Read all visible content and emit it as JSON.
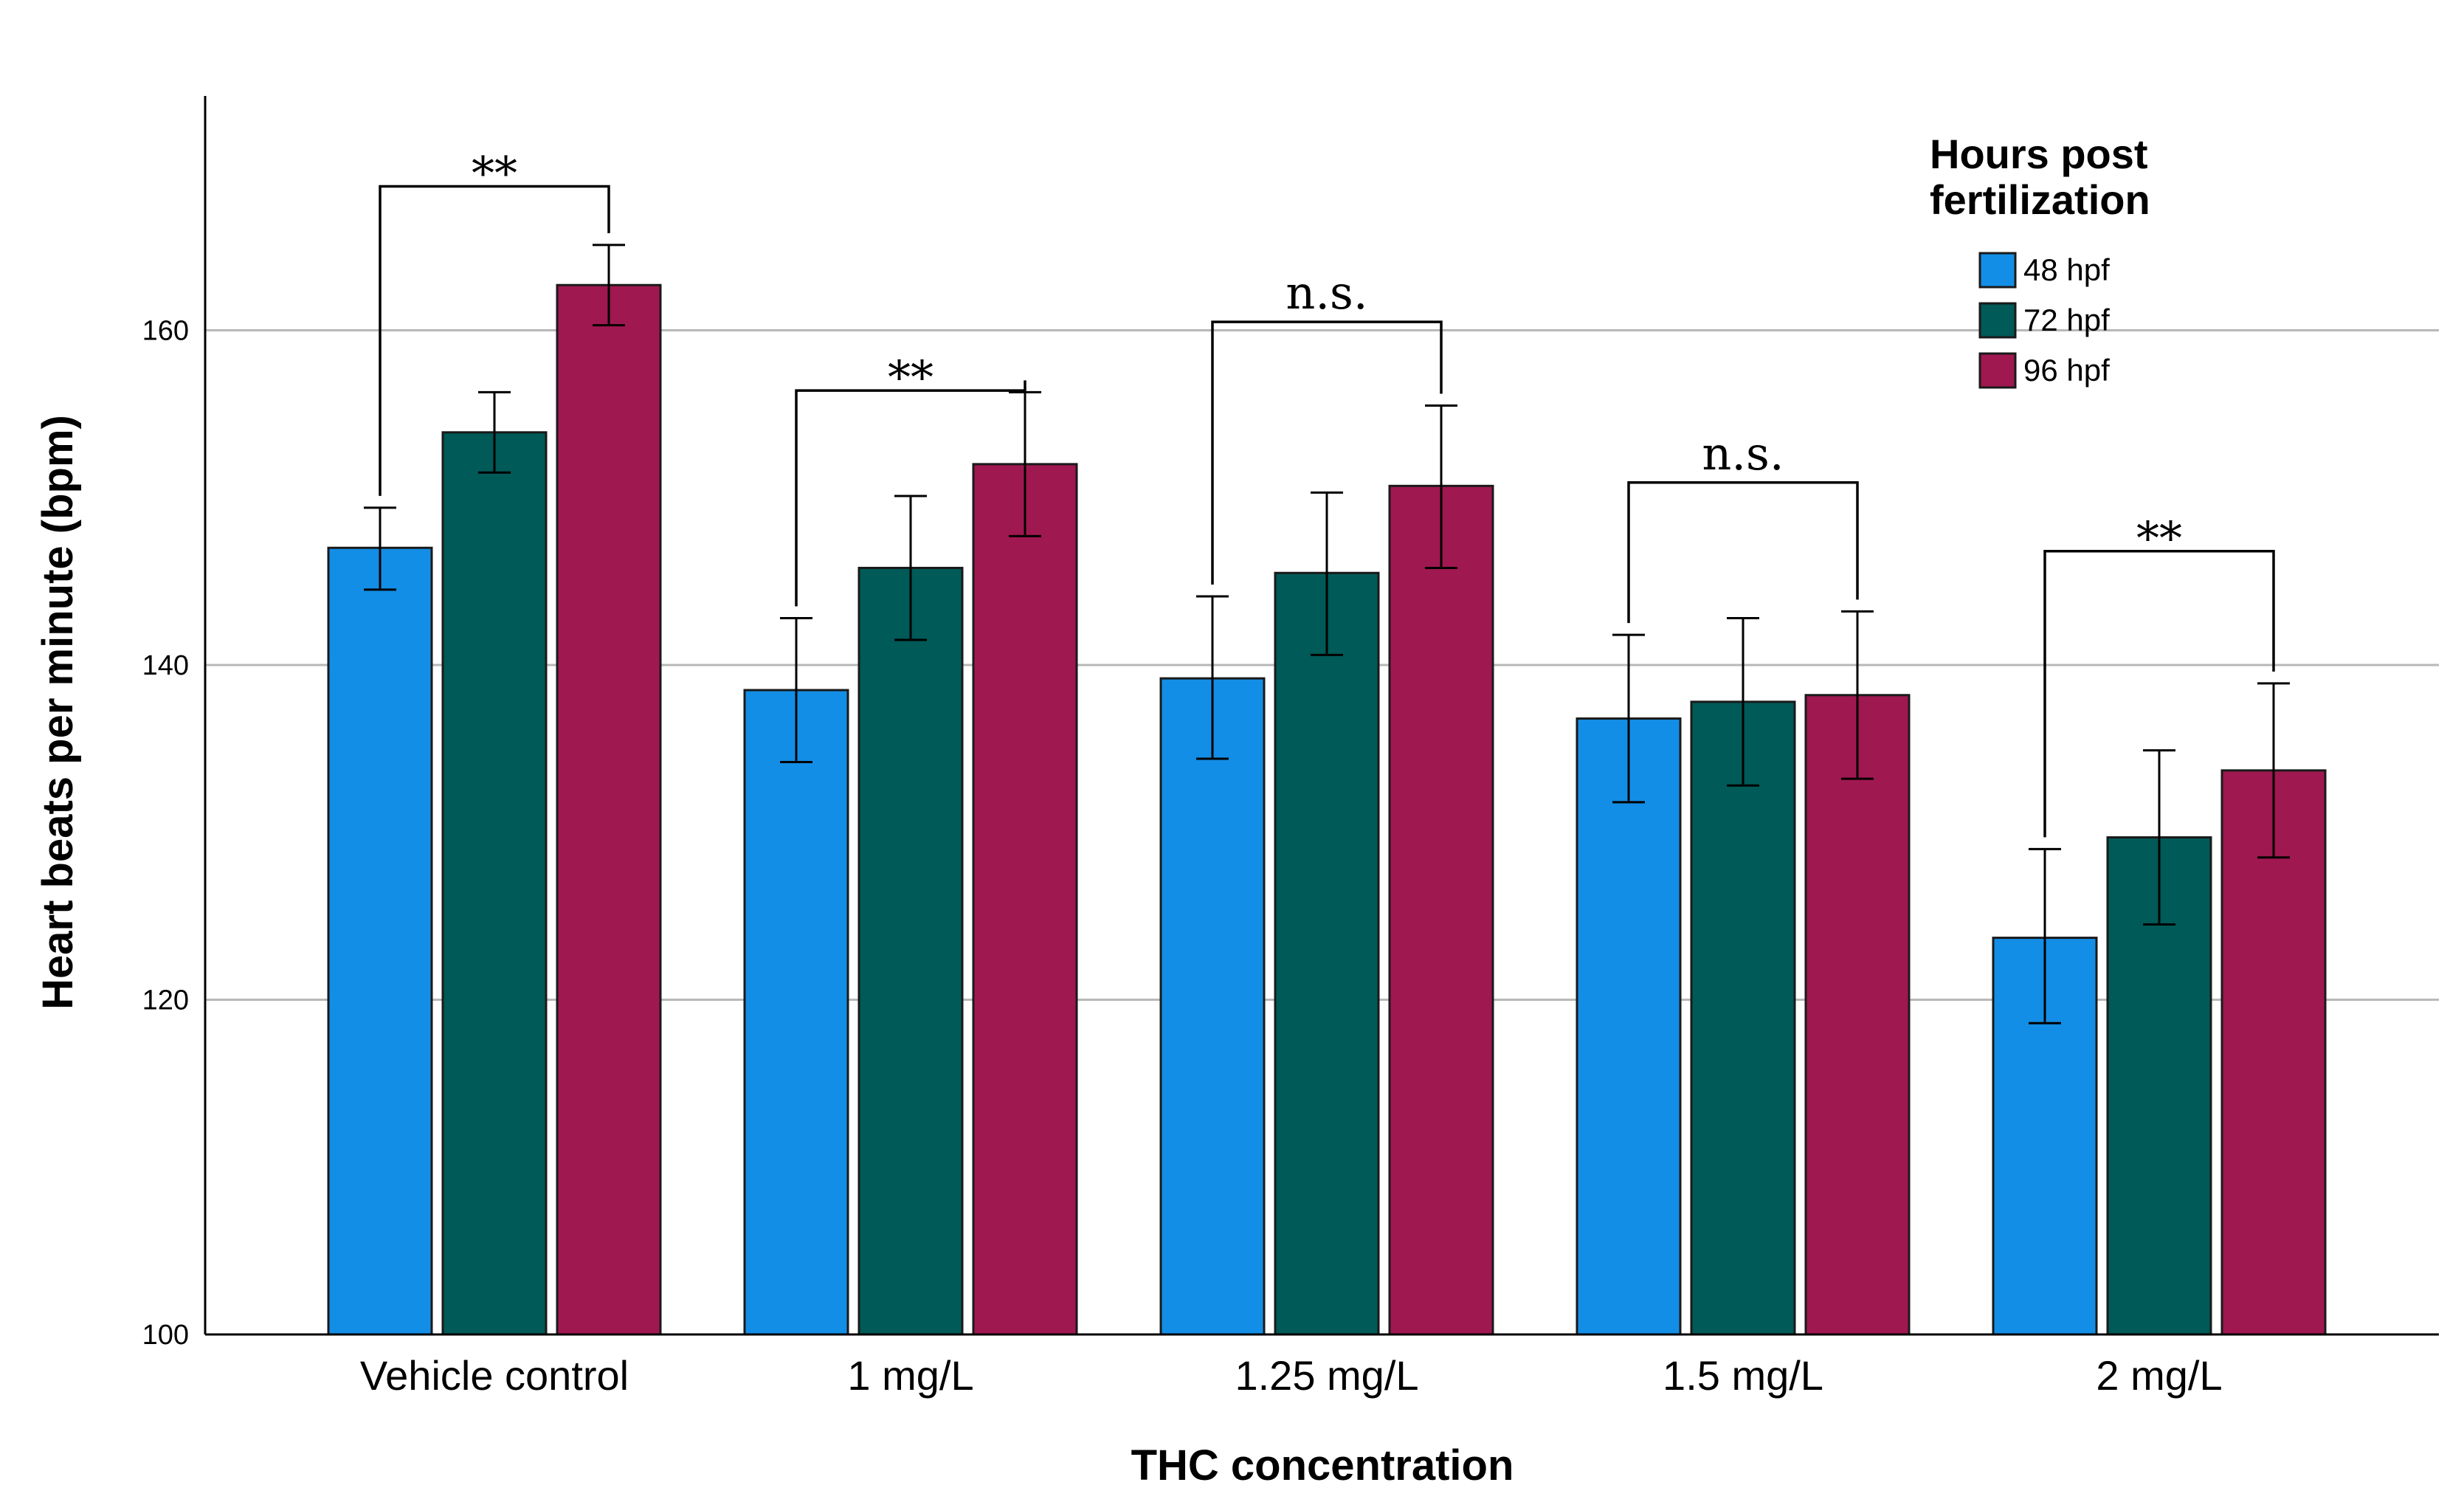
{
  "chart_data": {
    "type": "bar",
    "title": "",
    "xlabel": "THC concentration",
    "ylabel": "Heart beats per minute (bpm)",
    "ylim": [
      100,
      174
    ],
    "yticks": [
      100,
      120,
      140,
      160
    ],
    "grid": true,
    "categories": [
      "Vehicle control",
      "1 mg/L",
      "1.25 mg/L",
      "1.5 mg/L",
      "2 mg/L"
    ],
    "legend": {
      "title_line1": "Hours post",
      "title_line2": "fertilization",
      "position": "top-right"
    },
    "series": [
      {
        "name": "48 hpf",
        "color": "#138ee6",
        "values": [
          147.0,
          138.5,
          139.2,
          136.8,
          123.7
        ],
        "err_low": [
          144.5,
          134.2,
          134.4,
          131.8,
          118.6
        ],
        "err_high": [
          149.4,
          142.8,
          144.1,
          141.8,
          129.0
        ]
      },
      {
        "name": "72 hpf",
        "color": "#005a57",
        "values": [
          153.9,
          145.8,
          145.5,
          137.8,
          129.7
        ],
        "err_low": [
          151.5,
          141.5,
          140.6,
          132.8,
          124.5
        ],
        "err_high": [
          156.3,
          150.1,
          150.3,
          142.8,
          134.9
        ]
      },
      {
        "name": "96 hpf",
        "color": "#a01850",
        "values": [
          162.7,
          152.0,
          150.7,
          138.2,
          133.7
        ],
        "err_low": [
          160.3,
          147.7,
          145.8,
          133.2,
          128.5
        ],
        "err_high": [
          165.1,
          156.3,
          155.5,
          143.2,
          138.9
        ]
      }
    ],
    "significance": [
      {
        "group": 0,
        "label": "**",
        "bar_y": 168.6
      },
      {
        "group": 1,
        "label": "**",
        "bar_y": 156.4
      },
      {
        "group": 2,
        "label": "n.s.",
        "bar_y": 160.5
      },
      {
        "group": 3,
        "label": "n.s.",
        "bar_y": 150.9
      },
      {
        "group": 4,
        "label": "**",
        "bar_y": 146.8
      }
    ]
  }
}
